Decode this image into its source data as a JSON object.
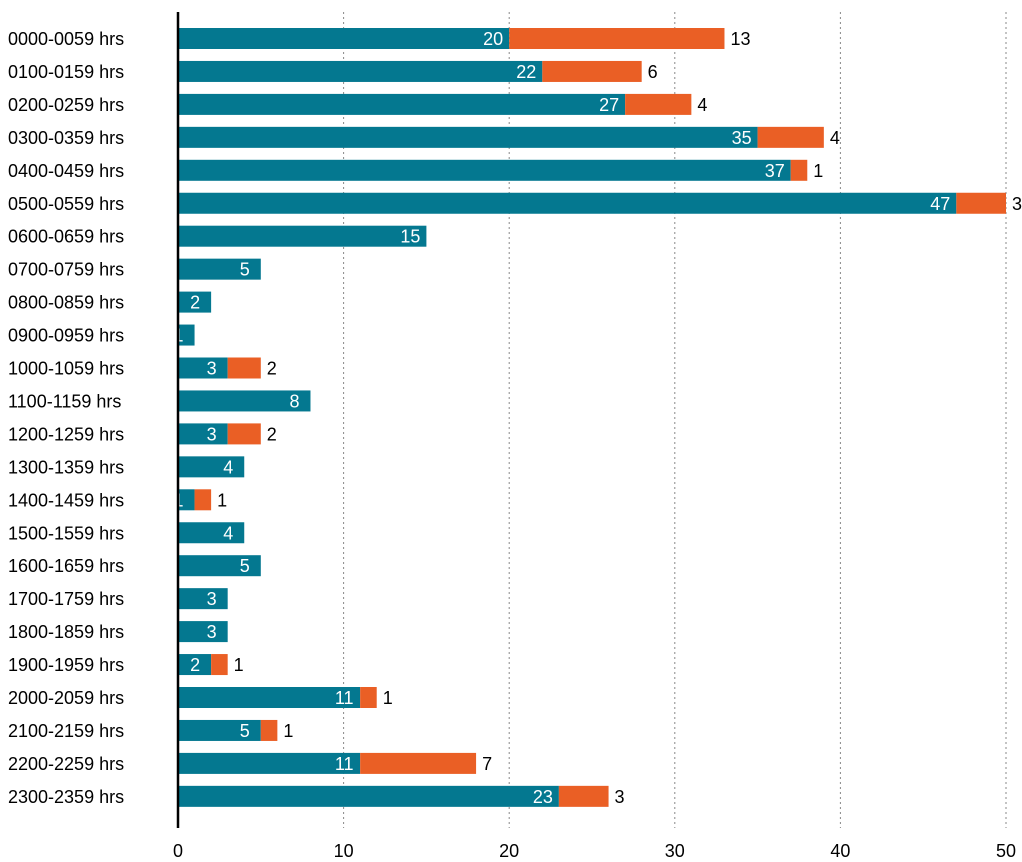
{
  "chart_data": {
    "type": "bar",
    "orientation": "horizontal",
    "stacked": true,
    "categories": [
      "0000-0059 hrs",
      "0100-0159 hrs",
      "0200-0259 hrs",
      "0300-0359 hrs",
      "0400-0459 hrs",
      "0500-0559 hrs",
      "0600-0659 hrs",
      "0700-0759 hrs",
      "0800-0859 hrs",
      "0900-0959 hrs",
      "1000-1059 hrs",
      "1100-1159 hrs",
      "1200-1259 hrs",
      "1300-1359 hrs",
      "1400-1459 hrs",
      "1500-1559 hrs",
      "1600-1659 hrs",
      "1700-1759 hrs",
      "1800-1859 hrs",
      "1900-1959 hrs",
      "2000-2059 hrs",
      "2100-2159 hrs",
      "2200-2259 hrs",
      "2300-2359 hrs"
    ],
    "series": [
      {
        "color": "#047890",
        "values": [
          20,
          22,
          27,
          35,
          37,
          47,
          15,
          5,
          2,
          1,
          3,
          8,
          3,
          4,
          1,
          4,
          5,
          3,
          3,
          2,
          11,
          5,
          11,
          23
        ]
      },
      {
        "color": "#EA5F25",
        "values": [
          13,
          6,
          4,
          4,
          1,
          3,
          0,
          0,
          0,
          0,
          2,
          0,
          2,
          0,
          1,
          0,
          0,
          0,
          0,
          1,
          1,
          1,
          7,
          3
        ]
      }
    ],
    "xlim": [
      0,
      50
    ],
    "xticks": [
      0,
      10,
      20,
      30,
      40,
      50
    ],
    "grid": "vertical dotted",
    "legend": "none",
    "title": "",
    "xlabel": "",
    "ylabel": ""
  }
}
